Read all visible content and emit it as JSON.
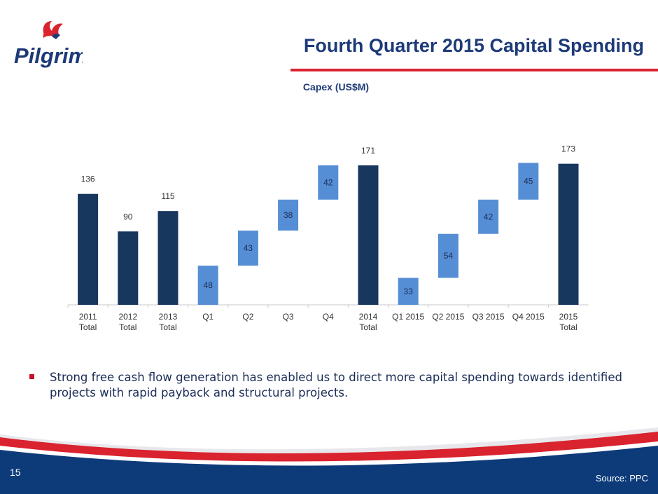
{
  "slide": {
    "title": "Fourth Quarter 2015 Capital Spending",
    "page_number": "15",
    "source": "Source: PPC",
    "bullet": "Strong free cash flow generation has enabled us to direct more capital spending towards identified projects with rapid payback and structural projects.",
    "logo_text": "Pilgrim's"
  },
  "colors": {
    "total_bar": "#17375e",
    "quarter_bar": "#558ed5",
    "title": "#1d3a78",
    "accent_red": "#d9232e",
    "footer_blue": "#0d3b7a"
  },
  "chart_data": {
    "type": "bar",
    "subtype": "waterfall",
    "title": "Capex (US$M)",
    "xlabel": "",
    "ylabel": "",
    "ylim": [
      0,
      200
    ],
    "grid": false,
    "categories": [
      "2011\nTotal",
      "2012\nTotal",
      "2013\nTotal",
      "Q1",
      "Q2",
      "Q3",
      "Q4",
      "2014\nTotal",
      "Q1 2015",
      "Q2 2015",
      "Q3 2015",
      "Q4 2015",
      "2015\nTotal"
    ],
    "bars": [
      {
        "label": "136",
        "value": 136,
        "base": 0,
        "kind": "total"
      },
      {
        "label": "90",
        "value": 90,
        "base": 0,
        "kind": "total"
      },
      {
        "label": "115",
        "value": 115,
        "base": 0,
        "kind": "total"
      },
      {
        "label": "48",
        "value": 48,
        "base": 0,
        "kind": "increment"
      },
      {
        "label": "43",
        "value": 43,
        "base": 48,
        "kind": "increment"
      },
      {
        "label": "38",
        "value": 38,
        "base": 91,
        "kind": "increment"
      },
      {
        "label": "42",
        "value": 42,
        "base": 129,
        "kind": "increment"
      },
      {
        "label": "171",
        "value": 171,
        "base": 0,
        "kind": "total"
      },
      {
        "label": "33",
        "value": 33,
        "base": 0,
        "kind": "increment"
      },
      {
        "label": "54",
        "value": 54,
        "base": 33,
        "kind": "increment"
      },
      {
        "label": "42",
        "value": 42,
        "base": 87,
        "kind": "increment"
      },
      {
        "label": "45",
        "value": 45,
        "base": 129,
        "kind": "increment"
      },
      {
        "label": "173",
        "value": 173,
        "base": 0,
        "kind": "total"
      }
    ]
  }
}
